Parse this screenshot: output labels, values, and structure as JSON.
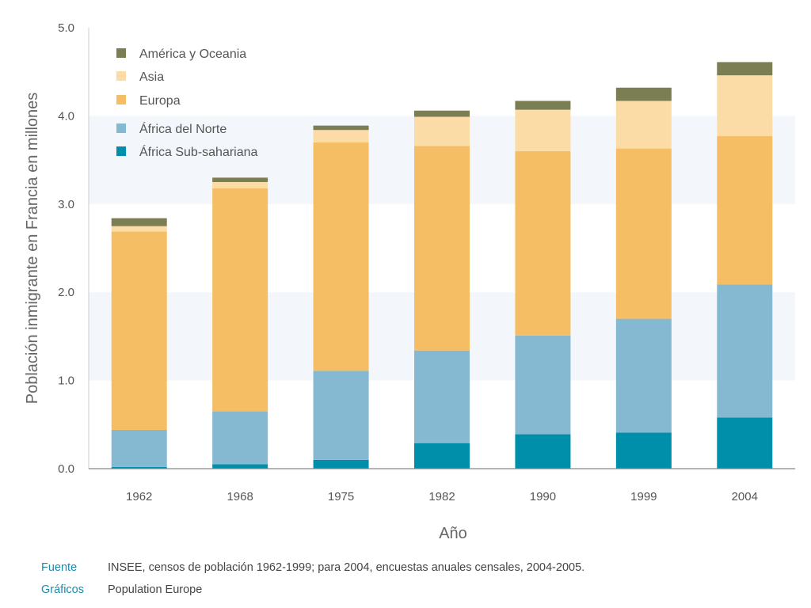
{
  "chart_data": {
    "type": "bar",
    "stacked": true,
    "categories": [
      "1962",
      "1968",
      "1975",
      "1982",
      "1990",
      "1999",
      "2004"
    ],
    "series": [
      {
        "name": "África Sub-sahariana",
        "color": "#008fab",
        "values": [
          0.02,
          0.05,
          0.1,
          0.29,
          0.39,
          0.41,
          0.58
        ]
      },
      {
        "name": "África del Norte",
        "color": "#84b9d1",
        "values": [
          0.42,
          0.6,
          1.01,
          1.05,
          1.12,
          1.29,
          1.51
        ]
      },
      {
        "name": "Europa",
        "color": "#f6be64",
        "values": [
          2.25,
          2.53,
          2.59,
          2.32,
          2.09,
          1.93,
          1.68
        ]
      },
      {
        "name": "Asia",
        "color": "#fcdca6",
        "values": [
          0.06,
          0.07,
          0.14,
          0.33,
          0.47,
          0.54,
          0.69
        ]
      },
      {
        "name": "América y Oceania",
        "color": "#7b7d52",
        "values": [
          0.09,
          0.05,
          0.05,
          0.07,
          0.1,
          0.15,
          0.15
        ]
      }
    ],
    "legend_order": [
      "América y Oceania",
      "Asia",
      "Europa",
      "África del Norte",
      "África Sub-sahariana"
    ],
    "legend_position": "top-left",
    "ylim": [
      0,
      5.0
    ],
    "yticks": [
      "0.0",
      "1.0",
      "2.0",
      "3.0",
      "4.0",
      "5.0"
    ],
    "ylabel": "Población inmigrante en Francia en millones",
    "xlabel": "Año",
    "band_colors": [
      "#ffffff",
      "#f3f6fb"
    ]
  },
  "footer": {
    "source_label": "Fuente",
    "source_text": "INSEE, censos de población 1962-1999; para 2004, encuestas anuales censales, 2004-2005.",
    "graphics_label": "Gráficos",
    "graphics_text": "Population Europe"
  }
}
